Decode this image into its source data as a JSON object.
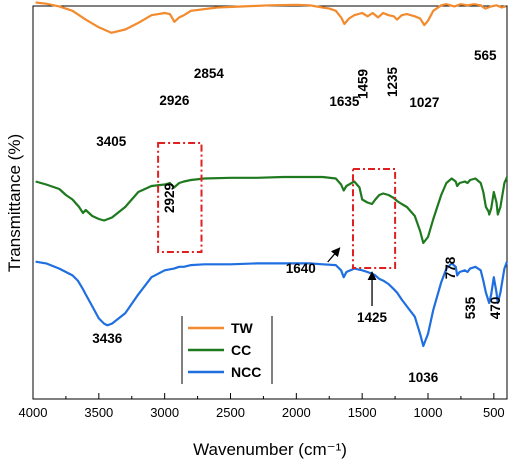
{
  "chart_data": {
    "type": "line",
    "xlabel": "Wavenumber (cm⁻¹)",
    "ylabel": "Transmittance (%)",
    "xlim": [
      4000,
      400
    ],
    "x_reversed": true,
    "ylim": [
      0,
      100
    ],
    "y_ticks_shown": false,
    "x_ticks": [
      4000,
      3500,
      3000,
      2500,
      2000,
      1500,
      1000,
      500
    ],
    "x_tick_labels": [
      "4000",
      "3500",
      "3000",
      "2500",
      "2000",
      "1500",
      "1000",
      "500"
    ],
    "grid": false,
    "legend_position": "bottom-center",
    "series": [
      {
        "name": "TW",
        "color": "#f28a2e",
        "x": [
          3980,
          3900,
          3800,
          3700,
          3600,
          3500,
          3405,
          3300,
          3200,
          3100,
          3000,
          2960,
          2926,
          2890,
          2854,
          2800,
          2600,
          2400,
          2200,
          2000,
          1900,
          1800,
          1750,
          1700,
          1660,
          1635,
          1600,
          1560,
          1500,
          1459,
          1420,
          1380,
          1340,
          1300,
          1260,
          1235,
          1200,
          1160,
          1100,
          1060,
          1027,
          1000,
          960,
          900,
          860,
          800,
          750,
          700,
          650,
          600,
          565,
          520,
          480,
          440,
          410
        ],
        "y": [
          99.5,
          98.5,
          96,
          92,
          84,
          77,
          72,
          75,
          81,
          88,
          90,
          89,
          82,
          86,
          88,
          92,
          95,
          96,
          97,
          97.5,
          97,
          95,
          94,
          92,
          86,
          80,
          85,
          88,
          90,
          87,
          90,
          86,
          90,
          88,
          87,
          84,
          88,
          89,
          87,
          85,
          79,
          83,
          92,
          97,
          98,
          96,
          98,
          97,
          98,
          97,
          94,
          96,
          97,
          95,
          96
        ]
      },
      {
        "name": "CC",
        "color": "#1f7a1f",
        "x": [
          3980,
          3900,
          3800,
          3750,
          3700,
          3650,
          3620,
          3600,
          3550,
          3500,
          3460,
          3400,
          3300,
          3200,
          3100,
          3000,
          2960,
          2929,
          2890,
          2854,
          2800,
          2700,
          2500,
          2300,
          2100,
          2000,
          1900,
          1800,
          1700,
          1660,
          1640,
          1620,
          1560,
          1520,
          1500,
          1460,
          1425,
          1400,
          1370,
          1340,
          1300,
          1260,
          1235,
          1200,
          1160,
          1100,
          1060,
          1036,
          1000,
          960,
          900,
          860,
          820,
          790,
          778,
          760,
          720,
          700,
          680,
          640,
          600,
          580,
          560,
          540,
          535,
          520,
          500,
          480,
          470,
          450,
          420,
          400
        ],
        "y": [
          67,
          65,
          62,
          58,
          55,
          50,
          46,
          48,
          44,
          42,
          41,
          43,
          50,
          60,
          64,
          65,
          66,
          63,
          66,
          67,
          68,
          69,
          69.5,
          69.5,
          70,
          70,
          70,
          70,
          69,
          65,
          61,
          64,
          67,
          63,
          55,
          53,
          52,
          55,
          58,
          59,
          58,
          56,
          54,
          52,
          50,
          44,
          34,
          26,
          30,
          42,
          58,
          66,
          69,
          67,
          64,
          66,
          67,
          66,
          68,
          69,
          66,
          60,
          50,
          47,
          45,
          49,
          60,
          53,
          45,
          50,
          66,
          70
        ]
      },
      {
        "name": "NCC",
        "color": "#1f6fe0",
        "x": [
          3980,
          3900,
          3800,
          3700,
          3660,
          3620,
          3600,
          3550,
          3500,
          3460,
          3436,
          3400,
          3300,
          3200,
          3100,
          3000,
          2929,
          2890,
          2854,
          2800,
          2700,
          2500,
          2300,
          2100,
          2000,
          1900,
          1800,
          1700,
          1660,
          1640,
          1620,
          1560,
          1500,
          1460,
          1425,
          1400,
          1370,
          1340,
          1300,
          1260,
          1235,
          1200,
          1160,
          1100,
          1060,
          1036,
          1000,
          960,
          900,
          860,
          820,
          790,
          778,
          760,
          720,
          700,
          680,
          640,
          600,
          580,
          560,
          540,
          535,
          520,
          500,
          480,
          470,
          450,
          420,
          400
        ],
        "y": [
          56,
          55,
          52,
          48,
          45,
          40,
          37,
          30,
          23,
          20,
          19,
          20,
          26,
          37,
          47,
          51,
          52,
          53,
          53,
          54,
          54.5,
          54.5,
          55,
          55,
          55,
          55,
          54.5,
          54,
          51,
          47,
          50,
          52,
          51,
          50,
          49,
          48,
          46,
          45,
          43,
          40,
          38,
          34,
          30,
          24,
          14,
          7,
          14,
          28,
          44,
          52,
          55,
          53,
          48,
          50,
          51,
          50,
          52,
          53,
          51,
          45,
          38,
          33,
          32,
          37,
          47,
          38,
          32,
          38,
          52,
          56
        ]
      }
    ],
    "annotations": [
      {
        "text": "3405",
        "x": 3405,
        "series": "TW"
      },
      {
        "text": "2926",
        "x": 2926,
        "series": "TW"
      },
      {
        "text": "2854",
        "x": 2854,
        "series": "TW"
      },
      {
        "text": "1635",
        "x": 1635,
        "series": "TW"
      },
      {
        "text": "1459",
        "x": 1459,
        "series": "TW"
      },
      {
        "text": "1235",
        "x": 1235,
        "series": "TW"
      },
      {
        "text": "1027",
        "x": 1027,
        "series": "TW"
      },
      {
        "text": "565",
        "x": 565,
        "series": "TW"
      },
      {
        "text": "2929",
        "x": 2929,
        "series": "CC"
      },
      {
        "text": "3436",
        "x": 3436,
        "series": "NCC"
      },
      {
        "text": "1640",
        "x": 1640,
        "series": "NCC"
      },
      {
        "text": "1425",
        "x": 1425,
        "series": "NCC"
      },
      {
        "text": "1036",
        "x": 1036,
        "series": "NCC"
      },
      {
        "text": "778",
        "x": 778,
        "series": "NCC"
      },
      {
        "text": "535",
        "x": 535,
        "series": "NCC"
      },
      {
        "text": "470",
        "x": 470,
        "series": "NCC"
      }
    ],
    "highlight_boxes": [
      {
        "x_range": [
          3050,
          2720
        ],
        "color": "#e02020",
        "style": "dash-dot"
      },
      {
        "x_range": [
          1570,
          1250
        ],
        "color": "#e02020",
        "style": "dash-dot"
      }
    ],
    "legend": [
      {
        "label": "TW",
        "color": "#f28a2e"
      },
      {
        "label": "CC",
        "color": "#1f7a1f"
      },
      {
        "label": "NCC",
        "color": "#1f6fe0"
      }
    ]
  }
}
